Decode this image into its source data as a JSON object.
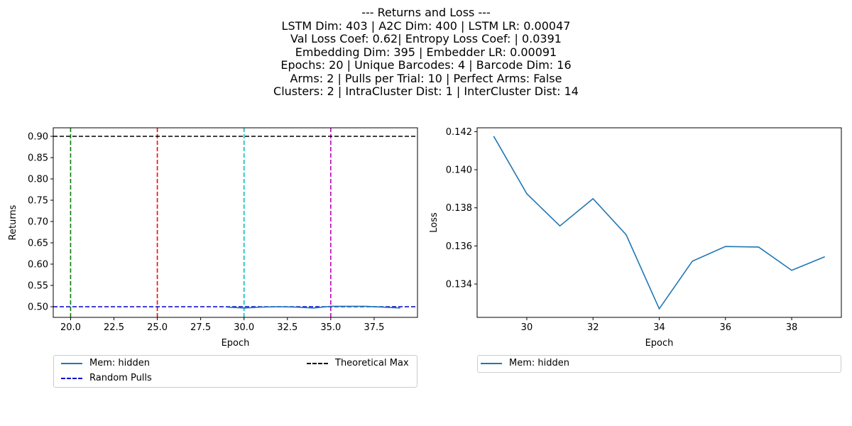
{
  "suptitle_lines": [
    "--- Returns and Loss ---",
    "LSTM Dim: 403 | A2C Dim: 400 | LSTM LR: 0.00047",
    "Val Loss Coef: 0.62| Entropy Loss Coef: | 0.0391",
    "Embedding Dim: 395 | Embedder LR: 0.00091",
    "Epochs: 20 | Unique Barcodes: 4 | Barcode Dim: 16",
    "Arms: 2 | Pulls per Trial: 10 | Perfect Arms: False",
    "Clusters: 2 | IntraCluster Dist: 1 | InterCluster Dist: 14"
  ],
  "colors": {
    "series": "#1f77b4",
    "random_pulls": "#0000cc",
    "theoretical_max": "#000000",
    "vlines": [
      "#008000",
      "#ff0000",
      "#00bfbf",
      "#bf00bf"
    ]
  },
  "chart_data": [
    {
      "type": "line",
      "xlabel": "Epoch",
      "ylabel": "Returns",
      "xlim": [
        19.0,
        40.0
      ],
      "ylim": [
        0.475,
        0.92
      ],
      "xticks": [
        "20.0",
        "22.5",
        "25.0",
        "27.5",
        "30.0",
        "32.5",
        "35.0",
        "37.5"
      ],
      "xtick_values": [
        20,
        22.5,
        25,
        27.5,
        30,
        32.5,
        35,
        37.5
      ],
      "yticks": [
        "0.50",
        "0.55",
        "0.60",
        "0.65",
        "0.70",
        "0.75",
        "0.80",
        "0.85",
        "0.90"
      ],
      "ytick_values": [
        0.5,
        0.55,
        0.6,
        0.65,
        0.7,
        0.75,
        0.8,
        0.85,
        0.9
      ],
      "series": [
        {
          "name": "Mem: hidden",
          "x": [
            29,
            30,
            31,
            32,
            33,
            34,
            35,
            36,
            37,
            38,
            39
          ],
          "values": [
            0.499,
            0.497,
            0.499,
            0.5,
            0.499,
            0.497,
            0.501,
            0.501,
            0.501,
            0.499,
            0.497
          ]
        }
      ],
      "hlines": [
        {
          "name": "Random Pulls",
          "y": 0.5
        },
        {
          "name": "Theoretical Max",
          "y": 0.9
        }
      ],
      "vlines": [
        20,
        25,
        30,
        35
      ],
      "legend": {
        "placement": "below",
        "entries": [
          "Mem: hidden",
          "Random Pulls",
          "Theoretical Max"
        ]
      }
    },
    {
      "type": "line",
      "xlabel": "Epoch",
      "ylabel": "Loss",
      "xlim": [
        28.5,
        39.5
      ],
      "ylim": [
        0.13225,
        0.1422
      ],
      "xticks": [
        "30",
        "32",
        "34",
        "36",
        "38"
      ],
      "xtick_values": [
        30,
        32,
        34,
        36,
        38
      ],
      "yticks": [
        "0.134",
        "0.136",
        "0.138",
        "0.140",
        "0.142"
      ],
      "ytick_values": [
        0.134,
        0.136,
        0.138,
        0.14,
        0.142
      ],
      "series": [
        {
          "name": "Mem: hidden",
          "x": [
            29,
            30,
            31,
            32,
            33,
            34,
            35,
            36,
            37,
            38,
            39
          ],
          "values": [
            0.14176,
            0.13874,
            0.13705,
            0.13848,
            0.13659,
            0.1327,
            0.1352,
            0.13597,
            0.13594,
            0.13472,
            0.13543
          ]
        }
      ],
      "legend": {
        "placement": "below",
        "entries": [
          "Mem: hidden"
        ]
      }
    }
  ]
}
